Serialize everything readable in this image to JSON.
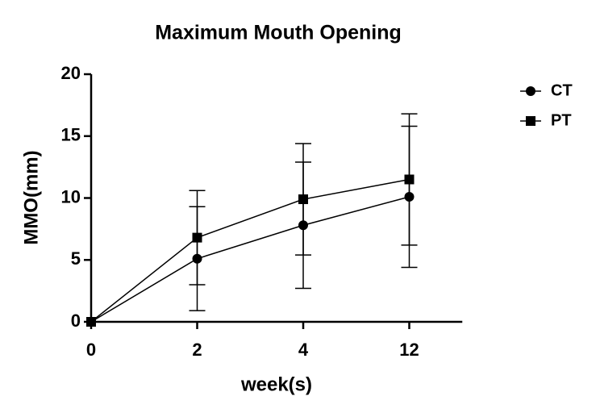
{
  "chart_data": {
    "type": "line",
    "title": "Maximum Mouth Opening",
    "x_label": "week(s)",
    "y_label": "MMO(mm)",
    "categories": [
      "0",
      "2",
      "4",
      "12"
    ],
    "series": [
      {
        "name": "CT",
        "color": "#000000",
        "marker": "circle",
        "values": [
          0,
          5.1,
          7.8,
          10.1
        ],
        "errors": [
          null,
          4.2,
          5.1,
          5.7
        ]
      },
      {
        "name": "PT",
        "color": "#000000",
        "marker": "square",
        "values": [
          0,
          6.8,
          9.9,
          11.5
        ],
        "errors": [
          null,
          3.8,
          4.5,
          5.3
        ]
      }
    ],
    "ylim": [
      0,
      20
    ],
    "yticks": [
      0,
      5,
      10,
      15,
      20
    ],
    "grid": false,
    "legend": "right"
  }
}
